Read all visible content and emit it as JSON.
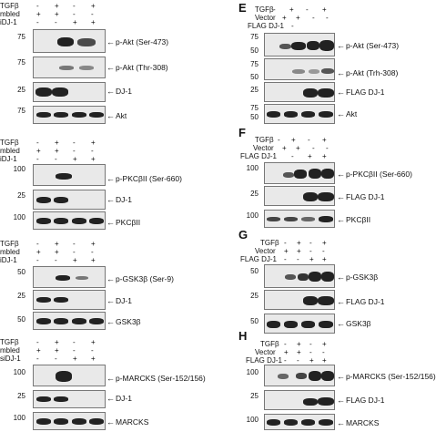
{
  "left": {
    "row_labels": {
      "tgfb": "TGFβ",
      "scrambled": "mbled",
      "sidj1_a": "iDJ-1",
      "sidj1_b": "siDJ-1"
    },
    "marks": {
      "plus": "+",
      "minus": "-"
    },
    "panelA": {
      "mw": [
        "75",
        "75",
        "25",
        "75"
      ],
      "labels": [
        "p-Akt (Ser-473)",
        "p-Akt (Thr-308)",
        "DJ-1",
        "Akt"
      ]
    },
    "panelB": {
      "mw": [
        "100",
        "25",
        "100"
      ],
      "labels": [
        "p-PKCβII (Ser-660)",
        "DJ-1",
        "PKCβII"
      ]
    },
    "panelC": {
      "mw": [
        "50",
        "25",
        "50"
      ],
      "labels": [
        "p-GSK3β (Ser-9)",
        "DJ-1",
        "GSK3β"
      ]
    },
    "panelD": {
      "mw": [
        "100",
        "25",
        "100"
      ],
      "labels": [
        "p-MARCKS (Ser-152/156)",
        "DJ-1",
        "MARCKS"
      ]
    }
  },
  "right": {
    "row_labels": {
      "tgfb": "TGFβ",
      "vector": "Vector",
      "flag": "FLAG DJ-1"
    },
    "panelE": {
      "letter": "E",
      "mw": [
        "75",
        "50",
        "75",
        "50",
        "25",
        "75",
        "50"
      ],
      "labels": [
        "p-Akt (Ser-473)",
        "p-Akt (Trh-308)",
        "FLAG DJ-1",
        "Akt"
      ]
    },
    "panelF": {
      "letter": "F",
      "mw": [
        "100",
        "25",
        "100"
      ],
      "labels": [
        "p-PKCβII (Ser-660)",
        "FLAG DJ-1",
        "PKCβII"
      ]
    },
    "panelG": {
      "letter": "G",
      "mw": [
        "50",
        "25",
        "50"
      ],
      "labels": [
        "p-GSK3β",
        "FLAG DJ-1",
        "GSK3β"
      ]
    },
    "panelH": {
      "letter": "H",
      "mw": [
        "100",
        "25",
        "100"
      ],
      "labels": [
        "p-MARCKS (Ser-152/156)",
        "FLAG DJ-1",
        "MARCKS"
      ]
    }
  }
}
